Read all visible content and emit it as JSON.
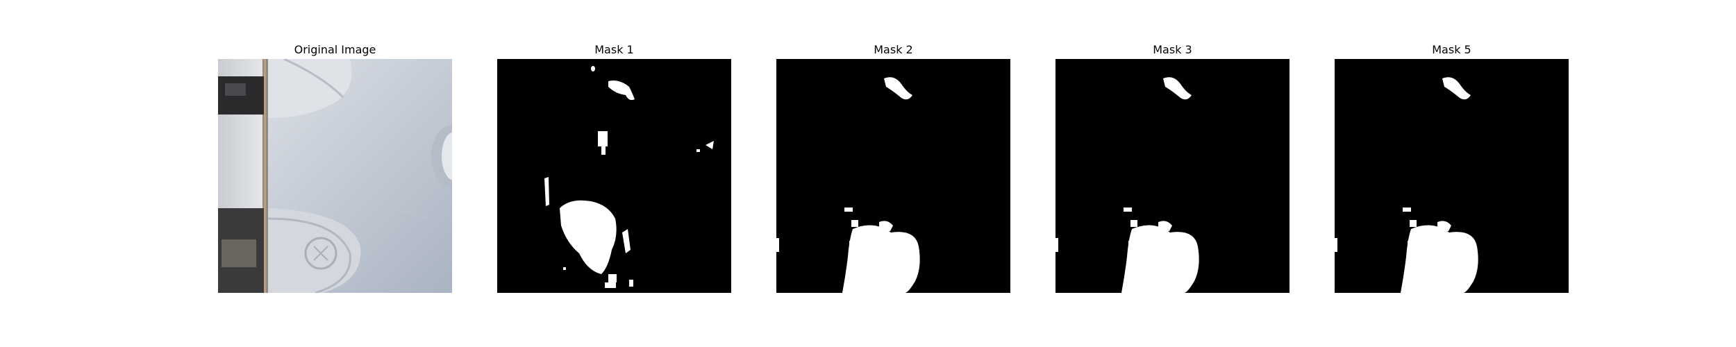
{
  "panels": [
    {
      "title": "Original Image",
      "kind": "photo",
      "subject": "white ceramic surface"
    },
    {
      "title": "Mask 1",
      "kind": "mask"
    },
    {
      "title": "Mask 2",
      "kind": "mask"
    },
    {
      "title": "Mask 3",
      "kind": "mask"
    },
    {
      "title": "Mask 5",
      "kind": "mask"
    }
  ],
  "colors": {
    "mask_background": "#000000",
    "mask_foreground": "#ffffff",
    "photo_base": "#c9cfd8"
  }
}
